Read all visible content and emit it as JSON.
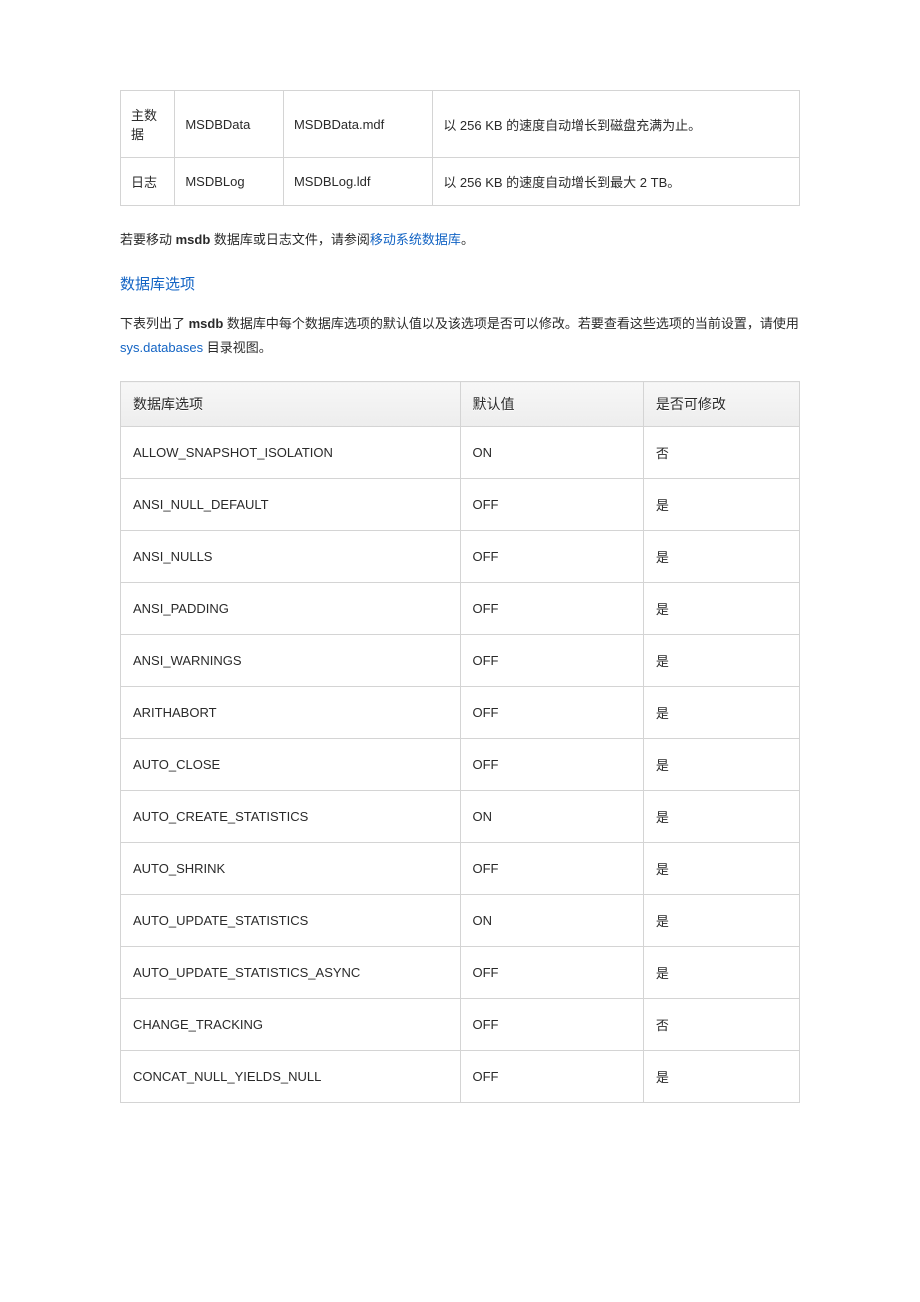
{
  "table1": {
    "rows": [
      {
        "c1": "主数据",
        "c2": "MSDBData",
        "c3": "MSDBData.mdf",
        "c4": "以 256 KB 的速度自动增长到磁盘充满为止。"
      },
      {
        "c1": "日志",
        "c2": "MSDBLog",
        "c3": "MSDBLog.ldf",
        "c4": "以 256 KB 的速度自动增长到最大 2 TB。"
      }
    ]
  },
  "para1": {
    "prefix": "若要移动 ",
    "bold": "msdb",
    "mid": " 数据库或日志文件，请参阅",
    "link": "移动系统数据库",
    "suffix": "。"
  },
  "section_heading": "数据库选项",
  "para2": {
    "prefix": "下表列出了 ",
    "bold": "msdb",
    "mid": " 数据库中每个数据库选项的默认值以及该选项是否可以修改。若要查看这些选项的当前设置，请使用 ",
    "link": "sys.databases",
    "suffix": " 目录视图。"
  },
  "table2": {
    "headers": {
      "h1": "数据库选项",
      "h2": "默认值",
      "h3": "是否可修改"
    },
    "rows": [
      {
        "opt": "ALLOW_SNAPSHOT_ISOLATION",
        "def": "ON",
        "mod": "否"
      },
      {
        "opt": "ANSI_NULL_DEFAULT",
        "def": "OFF",
        "mod": "是"
      },
      {
        "opt": "ANSI_NULLS",
        "def": "OFF",
        "mod": "是"
      },
      {
        "opt": "ANSI_PADDING",
        "def": "OFF",
        "mod": "是"
      },
      {
        "opt": "ANSI_WARNINGS",
        "def": "OFF",
        "mod": "是"
      },
      {
        "opt": "ARITHABORT",
        "def": "OFF",
        "mod": "是"
      },
      {
        "opt": "AUTO_CLOSE",
        "def": "OFF",
        "mod": "是"
      },
      {
        "opt": "AUTO_CREATE_STATISTICS",
        "def": "ON",
        "mod": "是"
      },
      {
        "opt": "AUTO_SHRINK",
        "def": "OFF",
        "mod": "是"
      },
      {
        "opt": "AUTO_UPDATE_STATISTICS",
        "def": "ON",
        "mod": "是"
      },
      {
        "opt": "AUTO_UPDATE_STATISTICS_ASYNC",
        "def": "OFF",
        "mod": "是"
      },
      {
        "opt": "CHANGE_TRACKING",
        "def": "OFF",
        "mod": "否"
      },
      {
        "opt": "CONCAT_NULL_YIELDS_NULL",
        "def": "OFF",
        "mod": "是"
      }
    ]
  }
}
